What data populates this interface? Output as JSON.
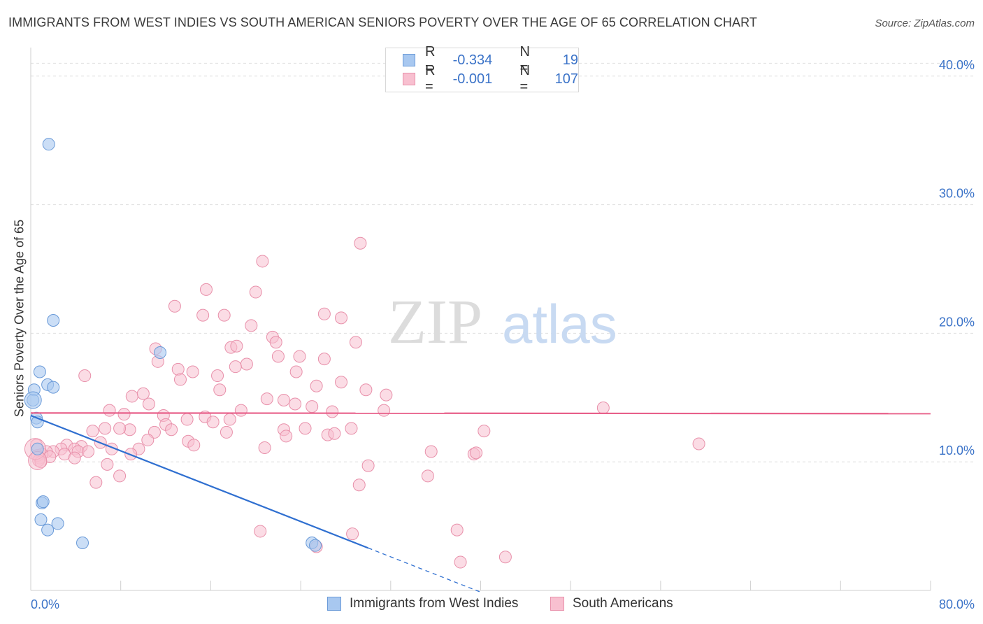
{
  "title": "IMMIGRANTS FROM WEST INDIES VS SOUTH AMERICAN SENIORS POVERTY OVER THE AGE OF 65 CORRELATION CHART",
  "source": "Source: ZipAtlas.com",
  "watermark": {
    "zip": "ZIP",
    "atlas": "atlas"
  },
  "legend": {
    "rows": [
      {
        "r_label": "R =",
        "r_value": "-0.334",
        "n_label": "N =",
        "n_value": "19",
        "color": "#a8c8f0",
        "border": "#6a9ad8"
      },
      {
        "r_label": "R =",
        "r_value": "-0.001",
        "n_label": "N =",
        "n_value": "107",
        "color": "#f8c0d0",
        "border": "#e890aa"
      }
    ]
  },
  "bottom_legend": {
    "series1": "Immigrants from West Indies",
    "series2": "South Americans"
  },
  "chart_data": {
    "type": "scatter",
    "title": "IMMIGRANTS FROM WEST INDIES VS SOUTH AMERICAN SENIORS POVERTY OVER THE AGE OF 65 CORRELATION CHART",
    "xlabel": "",
    "ylabel": "Seniors Poverty Over the Age of 65",
    "xlim": [
      0,
      80
    ],
    "ylim": [
      0,
      42
    ],
    "x_ticks": [
      0,
      8,
      16,
      24,
      32,
      40,
      48,
      56,
      64,
      72,
      80
    ],
    "x_tick_labels": {
      "first": "0.0%",
      "last": "80.0%"
    },
    "y_ticks": [
      10,
      20,
      30,
      40
    ],
    "y_tick_labels": [
      "10.0%",
      "20.0%",
      "30.0%",
      "40.0%"
    ],
    "grid": true,
    "series": [
      {
        "name": "Immigrants from West Indies",
        "color": "#a8c8f0",
        "stroke": "#6a9ad8",
        "line_color": "#2f6fd0",
        "regression": {
          "x0": 0,
          "y0": 13.6,
          "x1": 30,
          "y1": 3.3,
          "dash_to_x": 40
        },
        "points": [
          [
            1.6,
            34.7
          ],
          [
            2.0,
            21.0
          ],
          [
            0.8,
            17.0
          ],
          [
            1.5,
            16.0
          ],
          [
            2.0,
            15.8
          ],
          [
            0.3,
            15.6
          ],
          [
            0.2,
            14.8
          ],
          [
            0.5,
            13.4
          ],
          [
            0.6,
            13.1
          ],
          [
            0.6,
            11.0
          ],
          [
            11.5,
            18.5
          ],
          [
            1.0,
            6.8
          ],
          [
            1.1,
            6.9
          ],
          [
            0.9,
            5.5
          ],
          [
            2.4,
            5.2
          ],
          [
            1.5,
            4.7
          ],
          [
            4.6,
            3.7
          ],
          [
            25.0,
            3.7
          ],
          [
            25.3,
            3.5
          ]
        ]
      },
      {
        "name": "South Americans",
        "color": "#f8c0d0",
        "stroke": "#e890aa",
        "line_color": "#e8608a",
        "regression": {
          "x0": 0,
          "y0": 13.8,
          "x1": 80,
          "y1": 13.75
        },
        "points": [
          [
            29.3,
            27.0
          ],
          [
            20.6,
            25.6
          ],
          [
            20.0,
            23.2
          ],
          [
            15.6,
            23.4
          ],
          [
            12.8,
            22.1
          ],
          [
            17.2,
            21.4
          ],
          [
            15.3,
            21.4
          ],
          [
            26.1,
            21.5
          ],
          [
            27.6,
            21.2
          ],
          [
            19.6,
            20.6
          ],
          [
            21.5,
            19.7
          ],
          [
            21.8,
            19.3
          ],
          [
            28.9,
            19.3
          ],
          [
            11.1,
            18.8
          ],
          [
            17.8,
            18.9
          ],
          [
            18.3,
            19.0
          ],
          [
            22.0,
            18.2
          ],
          [
            23.9,
            18.2
          ],
          [
            26.1,
            18.0
          ],
          [
            11.3,
            17.8
          ],
          [
            19.2,
            17.6
          ],
          [
            18.2,
            17.4
          ],
          [
            13.1,
            17.2
          ],
          [
            14.4,
            17.0
          ],
          [
            23.6,
            17.0
          ],
          [
            4.8,
            16.7
          ],
          [
            16.6,
            16.7
          ],
          [
            13.3,
            16.4
          ],
          [
            27.6,
            16.2
          ],
          [
            25.4,
            15.9
          ],
          [
            16.8,
            15.6
          ],
          [
            29.8,
            15.6
          ],
          [
            31.6,
            15.2
          ],
          [
            9.0,
            15.1
          ],
          [
            10.0,
            15.3
          ],
          [
            21.0,
            14.9
          ],
          [
            22.5,
            14.8
          ],
          [
            23.5,
            14.5
          ],
          [
            10.5,
            14.5
          ],
          [
            7.0,
            14.0
          ],
          [
            18.7,
            14.0
          ],
          [
            25.0,
            14.3
          ],
          [
            26.8,
            13.9
          ],
          [
            31.4,
            14.0
          ],
          [
            50.9,
            14.2
          ],
          [
            8.3,
            13.7
          ],
          [
            11.8,
            13.6
          ],
          [
            13.9,
            13.3
          ],
          [
            15.5,
            13.5
          ],
          [
            16.2,
            13.1
          ],
          [
            17.7,
            13.3
          ],
          [
            12.0,
            12.9
          ],
          [
            12.5,
            12.5
          ],
          [
            8.8,
            12.5
          ],
          [
            7.9,
            12.6
          ],
          [
            5.5,
            12.4
          ],
          [
            6.6,
            12.6
          ],
          [
            17.4,
            12.3
          ],
          [
            22.5,
            12.5
          ],
          [
            24.4,
            12.6
          ],
          [
            28.5,
            12.6
          ],
          [
            11.0,
            12.3
          ],
          [
            22.7,
            12.0
          ],
          [
            26.4,
            12.1
          ],
          [
            27.0,
            12.2
          ],
          [
            40.3,
            12.4
          ],
          [
            10.4,
            11.7
          ],
          [
            14.0,
            11.6
          ],
          [
            14.5,
            11.3
          ],
          [
            6.2,
            11.5
          ],
          [
            4.5,
            11.2
          ],
          [
            3.2,
            11.3
          ],
          [
            2.7,
            11.0
          ],
          [
            3.9,
            11.0
          ],
          [
            20.8,
            11.1
          ],
          [
            7.2,
            11.0
          ],
          [
            9.6,
            11.0
          ],
          [
            2.0,
            10.8
          ],
          [
            1.4,
            10.8
          ],
          [
            1.0,
            10.6
          ],
          [
            1.7,
            10.4
          ],
          [
            0.8,
            10.3
          ],
          [
            3.0,
            10.6
          ],
          [
            4.2,
            10.8
          ],
          [
            5.1,
            10.8
          ],
          [
            3.9,
            10.3
          ],
          [
            0.5,
            11.3
          ],
          [
            0.6,
            10.5
          ],
          [
            0.7,
            10.1
          ],
          [
            0.9,
            10.0
          ],
          [
            8.9,
            10.6
          ],
          [
            35.6,
            10.8
          ],
          [
            39.4,
            10.6
          ],
          [
            39.6,
            10.7
          ],
          [
            59.4,
            11.4
          ],
          [
            6.8,
            9.8
          ],
          [
            30.0,
            9.7
          ],
          [
            35.3,
            8.9
          ],
          [
            7.9,
            8.9
          ],
          [
            5.8,
            8.4
          ],
          [
            29.2,
            8.2
          ],
          [
            20.4,
            4.6
          ],
          [
            28.6,
            4.4
          ],
          [
            37.9,
            4.7
          ],
          [
            25.4,
            3.4
          ],
          [
            38.2,
            2.2
          ],
          [
            42.2,
            2.6
          ]
        ],
        "large_points": [
          [
            0.4,
            11.0,
            15
          ],
          [
            0.6,
            10.1,
            13
          ]
        ]
      }
    ]
  }
}
